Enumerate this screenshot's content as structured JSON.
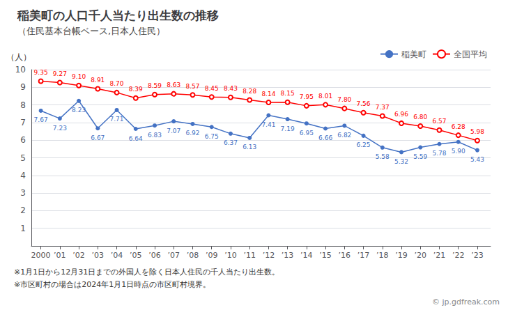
{
  "chart_data": {
    "type": "line",
    "title": "稲美町の人口千人当たり出生数の推移",
    "subtitle": "（住民基本台帳ベース,日本人住民）",
    "ylabel": "（人）",
    "annotations": [
      "※1月1日から12月31日までの外国人を除く日本人住民の千人当たり出生数。",
      "※市区町村の場合は2024年1月1日時点の市区町村境界。",
      "© jp.gdfreak.com"
    ],
    "x": [
      2000,
      2001,
      2002,
      2003,
      2004,
      2005,
      2006,
      2007,
      2008,
      2009,
      2010,
      2011,
      2012,
      2013,
      2014,
      2015,
      2016,
      2017,
      2018,
      2019,
      2020,
      2021,
      2022,
      2023
    ],
    "series": [
      {
        "name": "稲美町",
        "color": "#4472c4",
        "marker": "circle",
        "values": [
          7.67,
          7.23,
          8.23,
          6.67,
          7.71,
          6.64,
          6.83,
          7.07,
          6.92,
          6.75,
          6.37,
          6.13,
          7.41,
          7.19,
          6.95,
          6.66,
          6.82,
          6.25,
          5.58,
          5.32,
          5.59,
          5.78,
          5.9,
          5.43
        ],
        "value_labels": [
          "7.67",
          "7.23",
          "8.23",
          "6.67",
          "7.71",
          "6.64",
          "6.83",
          "7.07",
          "6.92",
          "6.75",
          "6.37",
          "6.13",
          "7.41",
          "7.19",
          "6.95",
          "6.66",
          "6.82",
          "6.25",
          "5.58",
          "5.32",
          "5.59",
          "5.78",
          "5.90",
          "5.43"
        ]
      },
      {
        "name": "全国平均",
        "color": "#ff0000",
        "marker": "open circle",
        "values": [
          9.35,
          9.27,
          9.1,
          8.91,
          8.7,
          8.39,
          8.59,
          8.63,
          8.57,
          8.45,
          8.43,
          8.28,
          8.14,
          8.15,
          7.95,
          8.01,
          7.8,
          7.56,
          7.37,
          6.96,
          6.8,
          6.57,
          6.28,
          5.98
        ],
        "value_labels": [
          "9.35",
          "9.27",
          "9.10",
          "8.91",
          "8.70",
          "8.39",
          "8.59",
          "8.63",
          "8.57",
          "8.45",
          "8.43",
          "8.28",
          "8.14",
          "8.15",
          "7.95",
          "8.01",
          "7.80",
          "7.56",
          "7.37",
          "6.96",
          "6.80",
          "6.57",
          "6.28",
          "5.98"
        ]
      }
    ],
    "xlim": [
      1999.5,
      2023.7
    ],
    "xticks": [
      2000,
      {
        "value": 2001,
        "label": "’01"
      },
      {
        "value": 2002,
        "label": "’02"
      },
      {
        "value": 2003,
        "label": "’03"
      },
      {
        "value": 2004,
        "label": "’04"
      },
      {
        "value": 2005,
        "label": "’05"
      },
      {
        "value": 2006,
        "label": "’06"
      },
      {
        "value": 2007,
        "label": "’07"
      },
      {
        "value": 2008,
        "label": "’08"
      },
      {
        "value": 2009,
        "label": "’09"
      },
      {
        "value": 2010,
        "label": "’10"
      },
      {
        "value": 2011,
        "label": "’11"
      },
      {
        "value": 2012,
        "label": "’12"
      },
      {
        "value": 2013,
        "label": "’13"
      },
      {
        "value": 2014,
        "label": "’14"
      },
      {
        "value": 2015,
        "label": "’15"
      },
      {
        "value": 2016,
        "label": "’16"
      },
      {
        "value": 2017,
        "label": "’17"
      },
      {
        "value": 2018,
        "label": "’18"
      },
      {
        "value": 2019,
        "label": "’19"
      },
      {
        "value": 2020,
        "label": "’20"
      },
      {
        "value": 2021,
        "label": "’21"
      },
      {
        "value": 2022,
        "label": "’22"
      },
      {
        "value": 2023,
        "label": "’23"
      }
    ],
    "ylim": [
      0,
      10
    ],
    "yticks": [
      1,
      2,
      3,
      4,
      5,
      6,
      7,
      8,
      9,
      10
    ],
    "grid": true,
    "legend": "upper right",
    "data_labels": true
  }
}
